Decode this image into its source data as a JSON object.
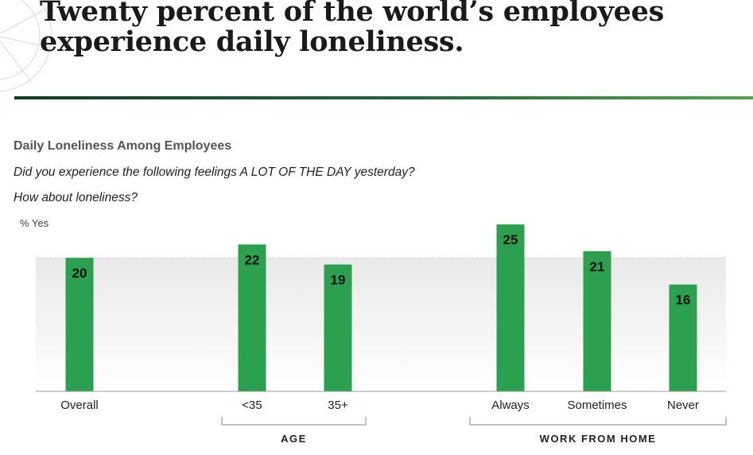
{
  "headline": {
    "line1": "Twenty percent of the world’s employees",
    "line2": "experience daily loneliness."
  },
  "chart_data": {
    "type": "bar",
    "title": "Daily Loneliness Among Employees",
    "subtitle_lines": [
      "Did you experience the following feelings A LOT OF THE DAY yesterday?",
      "How about loneliness?"
    ],
    "ylabel": "% Yes",
    "ylim": [
      0,
      28
    ],
    "reference_line": 20,
    "categories": [
      "Overall",
      "<35",
      "35+",
      "Always",
      "Sometimes",
      "Never"
    ],
    "values": [
      20,
      22,
      19,
      25,
      21,
      16
    ],
    "groups": [
      {
        "label": "AGE",
        "categories": [
          "<35",
          "35+"
        ]
      },
      {
        "label": "WORK FROM HOME",
        "categories": [
          "Always",
          "Sometimes",
          "Never"
        ]
      }
    ],
    "bar_color": "#2ba14f",
    "grid": false
  }
}
